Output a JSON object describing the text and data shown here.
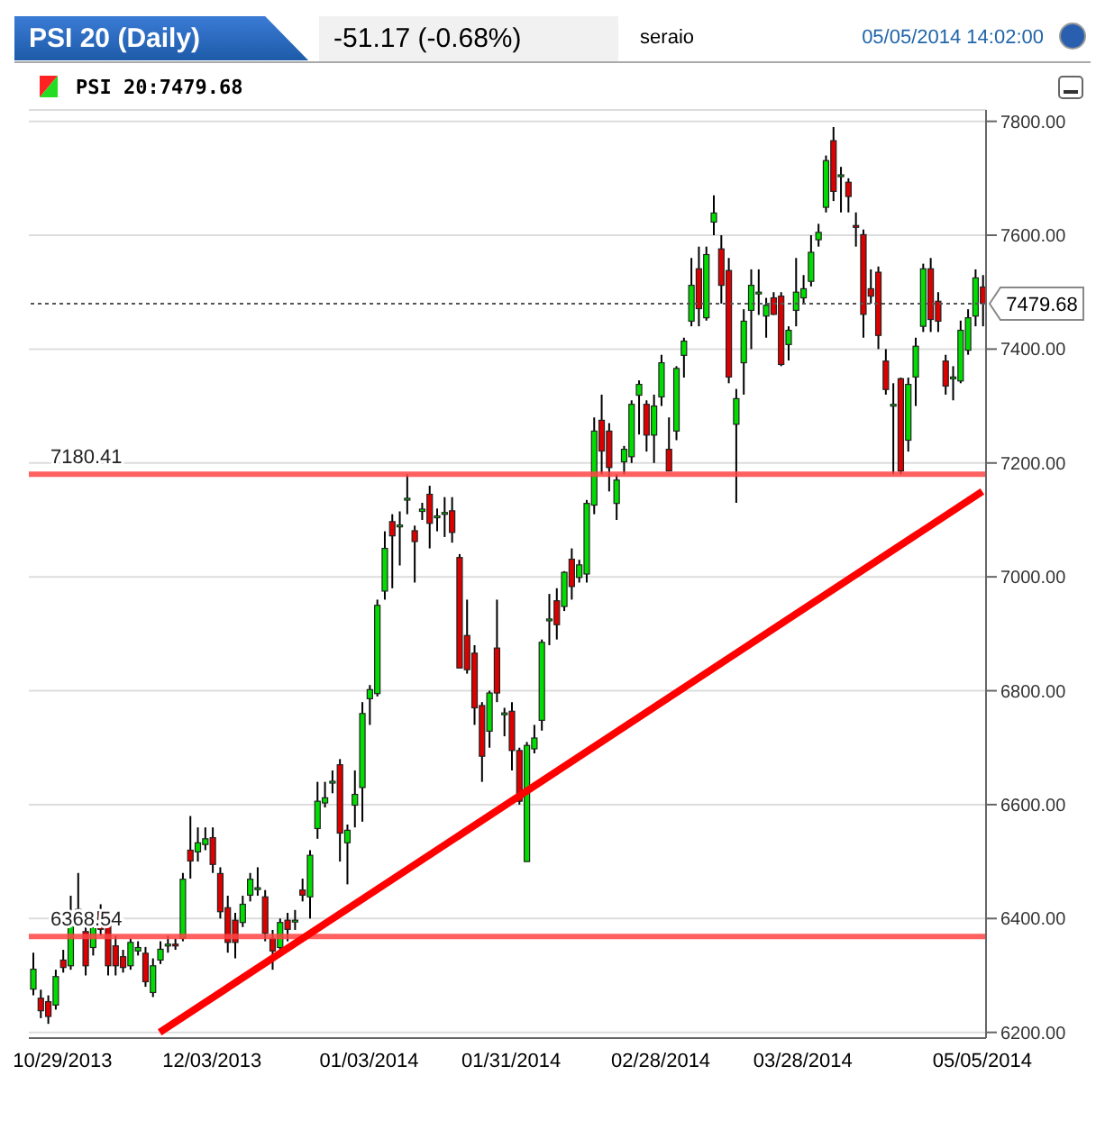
{
  "chart_data": {
    "type": "candlestick",
    "title": "PSI 20 (Daily)",
    "subtitle": "-51.17 (-0.68%)",
    "annotations": [
      "seraio",
      "05/05/2014 14:02:00",
      "PSI 20:7479.68"
    ],
    "categories": [
      null,
      null,
      null,
      null,
      "10/29/2013",
      null,
      null,
      null,
      null,
      null,
      null,
      null,
      null,
      null,
      null,
      null,
      null,
      null,
      null,
      null,
      null,
      null,
      null,
      null,
      "12/03/2013",
      null,
      null,
      null,
      null,
      null,
      null,
      null,
      null,
      null,
      null,
      null,
      null,
      null,
      null,
      null,
      null,
      null,
      null,
      null,
      null,
      "01/03/2014",
      null,
      null,
      null,
      null,
      null,
      null,
      null,
      null,
      null,
      null,
      null,
      null,
      null,
      null,
      null,
      null,
      null,
      null,
      "01/31/2014",
      null,
      null,
      null,
      null,
      null,
      null,
      null,
      null,
      null,
      null,
      null,
      null,
      null,
      null,
      null,
      null,
      null,
      null,
      null,
      "02/28/2014",
      null,
      null,
      null,
      null,
      null,
      null,
      null,
      null,
      null,
      null,
      null,
      null,
      null,
      null,
      null,
      null,
      null,
      null,
      "03/28/2014",
      null,
      null,
      null,
      null,
      null,
      null,
      null,
      null,
      null,
      null,
      null,
      null,
      null,
      null,
      null,
      null,
      null,
      null,
      null,
      null,
      null,
      null,
      null,
      "05/05/2014"
    ],
    "ohlc": [
      [
        6276,
        6340,
        6265,
        6311
      ],
      [
        6260,
        6275,
        6225,
        6238
      ],
      [
        6254,
        6265,
        6215,
        6228
      ],
      [
        6248,
        6310,
        6240,
        6298
      ],
      [
        6327,
        6345,
        6305,
        6314
      ],
      [
        6317,
        6440,
        6310,
        6406
      ],
      [
        6416,
        6480,
        6390,
        6400
      ],
      [
        6377,
        6400,
        6300,
        6317
      ],
      [
        6349,
        6400,
        6335,
        6384
      ],
      [
        6412,
        6425,
        6370,
        6381
      ],
      [
        6390,
        6400,
        6300,
        6317
      ],
      [
        6352,
        6370,
        6300,
        6317
      ],
      [
        6333,
        6345,
        6305,
        6314
      ],
      [
        6317,
        6365,
        6310,
        6358
      ],
      [
        6343,
        6360,
        6335,
        6349
      ],
      [
        6339,
        6350,
        6280,
        6289
      ],
      [
        6270,
        6330,
        6262,
        6317
      ],
      [
        6327,
        6360,
        6320,
        6346
      ],
      [
        6352,
        6370,
        6340,
        6355
      ],
      [
        6355,
        6365,
        6345,
        6352
      ],
      [
        6365,
        6480,
        6360,
        6469
      ],
      [
        6520,
        6580,
        6470,
        6501
      ],
      [
        6517,
        6560,
        6500,
        6533
      ],
      [
        6530,
        6560,
        6520,
        6540
      ],
      [
        6542,
        6560,
        6480,
        6495
      ],
      [
        6479,
        6490,
        6400,
        6412
      ],
      [
        6419,
        6440,
        6340,
        6358
      ],
      [
        6397,
        6410,
        6330,
        6358
      ],
      [
        6393,
        6440,
        6385,
        6425
      ],
      [
        6441,
        6480,
        6430,
        6469
      ],
      [
        6454,
        6490,
        6440,
        6454
      ],
      [
        6438,
        6450,
        6360,
        6374
      ],
      [
        6365,
        6380,
        6310,
        6343
      ],
      [
        6349,
        6400,
        6340,
        6393
      ],
      [
        6397,
        6410,
        6360,
        6381
      ],
      [
        6397,
        6415,
        6380,
        6397
      ],
      [
        6450,
        6470,
        6430,
        6441
      ],
      [
        6438,
        6520,
        6400,
        6511
      ],
      [
        6558,
        6640,
        6540,
        6606
      ],
      [
        6603,
        6640,
        6595,
        6612
      ],
      [
        6641,
        6660,
        6620,
        6641
      ],
      [
        6670,
        6680,
        6500,
        6550
      ],
      [
        6533,
        6565,
        6460,
        6555
      ],
      [
        6599,
        6660,
        6560,
        6618
      ],
      [
        6630,
        6780,
        6570,
        6760
      ],
      [
        6786,
        6810,
        6740,
        6802
      ],
      [
        6795,
        6960,
        6790,
        6950
      ],
      [
        6975,
        7080,
        6960,
        7050
      ],
      [
        7097,
        7110,
        6980,
        7072
      ],
      [
        7091,
        7115,
        7020,
        7091
      ],
      [
        7138,
        7180,
        7110,
        7138
      ],
      [
        7081,
        7090,
        6990,
        7062
      ],
      [
        7115,
        7130,
        7100,
        7119
      ],
      [
        7145,
        7160,
        7050,
        7094
      ],
      [
        7107,
        7120,
        7080,
        7107
      ],
      [
        7113,
        7140,
        7070,
        7113
      ],
      [
        7116,
        7140,
        7060,
        7078
      ],
      [
        7034,
        7040,
        6840,
        6840
      ],
      [
        6897,
        6960,
        6830,
        6837
      ],
      [
        6866,
        6880,
        6740,
        6770
      ],
      [
        6774,
        6780,
        6640,
        6685
      ],
      [
        6729,
        6800,
        6700,
        6796
      ],
      [
        6875,
        6960,
        6780,
        6796
      ],
      [
        6761,
        6770,
        6720,
        6761
      ],
      [
        6764,
        6780,
        6660,
        6695
      ],
      [
        6695,
        6700,
        6600,
        6606
      ],
      [
        6500,
        6710,
        6500,
        6704
      ],
      [
        6698,
        6740,
        6690,
        6717
      ],
      [
        6748,
        6890,
        6730,
        6885
      ],
      [
        6926,
        6970,
        6880,
        6926
      ],
      [
        6958,
        6980,
        6890,
        6916
      ],
      [
        6948,
        7010,
        6940,
        7008
      ],
      [
        7031,
        7050,
        6960,
        6983
      ],
      [
        6999,
        7030,
        6990,
        7021
      ],
      [
        7005,
        7135,
        6990,
        7129
      ],
      [
        7126,
        7280,
        7110,
        7256
      ],
      [
        7275,
        7320,
        7180,
        7221
      ],
      [
        7256,
        7270,
        7150,
        7192
      ],
      [
        7129,
        7180,
        7100,
        7170
      ],
      [
        7202,
        7230,
        7180,
        7224
      ],
      [
        7211,
        7310,
        7200,
        7303
      ],
      [
        7319,
        7345,
        7250,
        7338
      ],
      [
        7303,
        7310,
        7220,
        7249
      ],
      [
        7249,
        7320,
        7200,
        7300
      ],
      [
        7316,
        7390,
        7300,
        7376
      ],
      [
        7224,
        7280,
        7186,
        7186
      ],
      [
        7256,
        7370,
        7240,
        7366
      ],
      [
        7389,
        7420,
        7350,
        7414
      ],
      [
        7449,
        7560,
        7440,
        7512
      ],
      [
        7541,
        7580,
        7440,
        7471
      ],
      [
        7455,
        7580,
        7450,
        7566
      ],
      [
        7623,
        7670,
        7600,
        7639
      ],
      [
        7576,
        7600,
        7480,
        7512
      ],
      [
        7538,
        7560,
        7340,
        7351
      ],
      [
        7268,
        7330,
        7130,
        7313
      ],
      [
        7376,
        7470,
        7320,
        7449
      ],
      [
        7468,
        7540,
        7400,
        7512
      ],
      [
        7500,
        7540,
        7460,
        7500
      ],
      [
        7458,
        7490,
        7420,
        7477
      ],
      [
        7490,
        7500,
        7460,
        7461
      ],
      [
        7493,
        7500,
        7370,
        7373
      ],
      [
        7408,
        7440,
        7380,
        7433
      ],
      [
        7468,
        7560,
        7440,
        7500
      ],
      [
        7490,
        7530,
        7480,
        7506
      ],
      [
        7519,
        7600,
        7510,
        7570
      ],
      [
        7592,
        7620,
        7580,
        7605
      ],
      [
        7649,
        7740,
        7640,
        7731
      ],
      [
        7766,
        7790,
        7660,
        7677
      ],
      [
        7706,
        7720,
        7640,
        7706
      ],
      [
        7693,
        7700,
        7640,
        7668
      ],
      [
        7617,
        7640,
        7580,
        7614
      ],
      [
        7601,
        7610,
        7420,
        7461
      ],
      [
        7506,
        7540,
        7480,
        7493
      ],
      [
        7535,
        7545,
        7400,
        7424
      ],
      [
        7379,
        7400,
        7320,
        7329
      ],
      [
        7303,
        7340,
        7180,
        7303
      ],
      [
        7348,
        7350,
        7180,
        7186
      ],
      [
        7240,
        7350,
        7220,
        7338
      ],
      [
        7351,
        7420,
        7300,
        7405
      ],
      [
        7440,
        7550,
        7430,
        7541
      ],
      [
        7541,
        7560,
        7430,
        7452
      ],
      [
        7484,
        7500,
        7430,
        7449
      ],
      [
        7379,
        7390,
        7320,
        7335
      ],
      [
        7351,
        7370,
        7310,
        7351
      ],
      [
        7344,
        7450,
        7340,
        7433
      ],
      [
        7398,
        7470,
        7390,
        7455
      ],
      [
        7458,
        7540,
        7440,
        7525
      ],
      [
        7509,
        7530,
        7440,
        7480
      ]
    ],
    "series": [
      {
        "type": "line",
        "color": "#ff0000",
        "marker": "none",
        "values": [
          null,
          null,
          null,
          null,
          null,
          null,
          null,
          null,
          null,
          null,
          null,
          null,
          null,
          null,
          null,
          null,
          null,
          6200,
          null,
          null,
          null,
          null,
          null,
          null,
          null,
          null,
          null,
          null,
          null,
          null,
          null,
          null,
          null,
          null,
          null,
          null,
          null,
          null,
          null,
          null,
          null,
          null,
          null,
          null,
          null,
          null,
          null,
          null,
          null,
          null,
          null,
          null,
          null,
          null,
          null,
          null,
          null,
          null,
          null,
          null,
          null,
          null,
          null,
          null,
          null,
          null,
          null,
          null,
          null,
          null,
          null,
          null,
          null,
          null,
          null,
          null,
          null,
          null,
          null,
          null,
          null,
          null,
          null,
          null,
          null,
          null,
          null,
          null,
          null,
          null,
          null,
          null,
          null,
          null,
          null,
          null,
          null,
          null,
          null,
          null,
          null,
          null,
          null,
          null,
          null,
          null,
          null,
          null,
          null,
          null,
          null,
          null,
          null,
          null,
          null,
          null,
          null,
          null,
          null,
          null,
          null,
          null,
          null,
          null,
          null,
          null,
          null,
          7150
        ]
      }
    ],
    "ylim": [
      6190,
      7820
    ],
    "yticks": [
      {
        "value": 6200,
        "label": "6200.00"
      },
      {
        "value": 6400,
        "label": "6400.00"
      },
      {
        "value": 6600,
        "label": "6600.00"
      },
      {
        "value": 6800,
        "label": "6800.00"
      },
      {
        "value": 7000,
        "label": "7000.00"
      },
      {
        "value": 7200,
        "label": "7200.00"
      },
      {
        "value": 7400,
        "label": "7400.00"
      },
      {
        "value": 7600,
        "label": "7600.00"
      },
      {
        "value": 7800,
        "label": "7800.00"
      }
    ],
    "ref_lines": [
      {
        "axis": "y",
        "value": 7180.41,
        "label": "7180.41",
        "color": "#ff4444",
        "line_style": "solid"
      },
      {
        "axis": "y",
        "value": 6368.54,
        "label": "6368.54",
        "color": "#ff4444",
        "line_style": "solid"
      },
      {
        "axis": "y",
        "value": 7479.68,
        "label": "7479.68",
        "color": "#555555",
        "line_style": "dotted"
      }
    ],
    "grid": "y",
    "legend": false
  }
}
